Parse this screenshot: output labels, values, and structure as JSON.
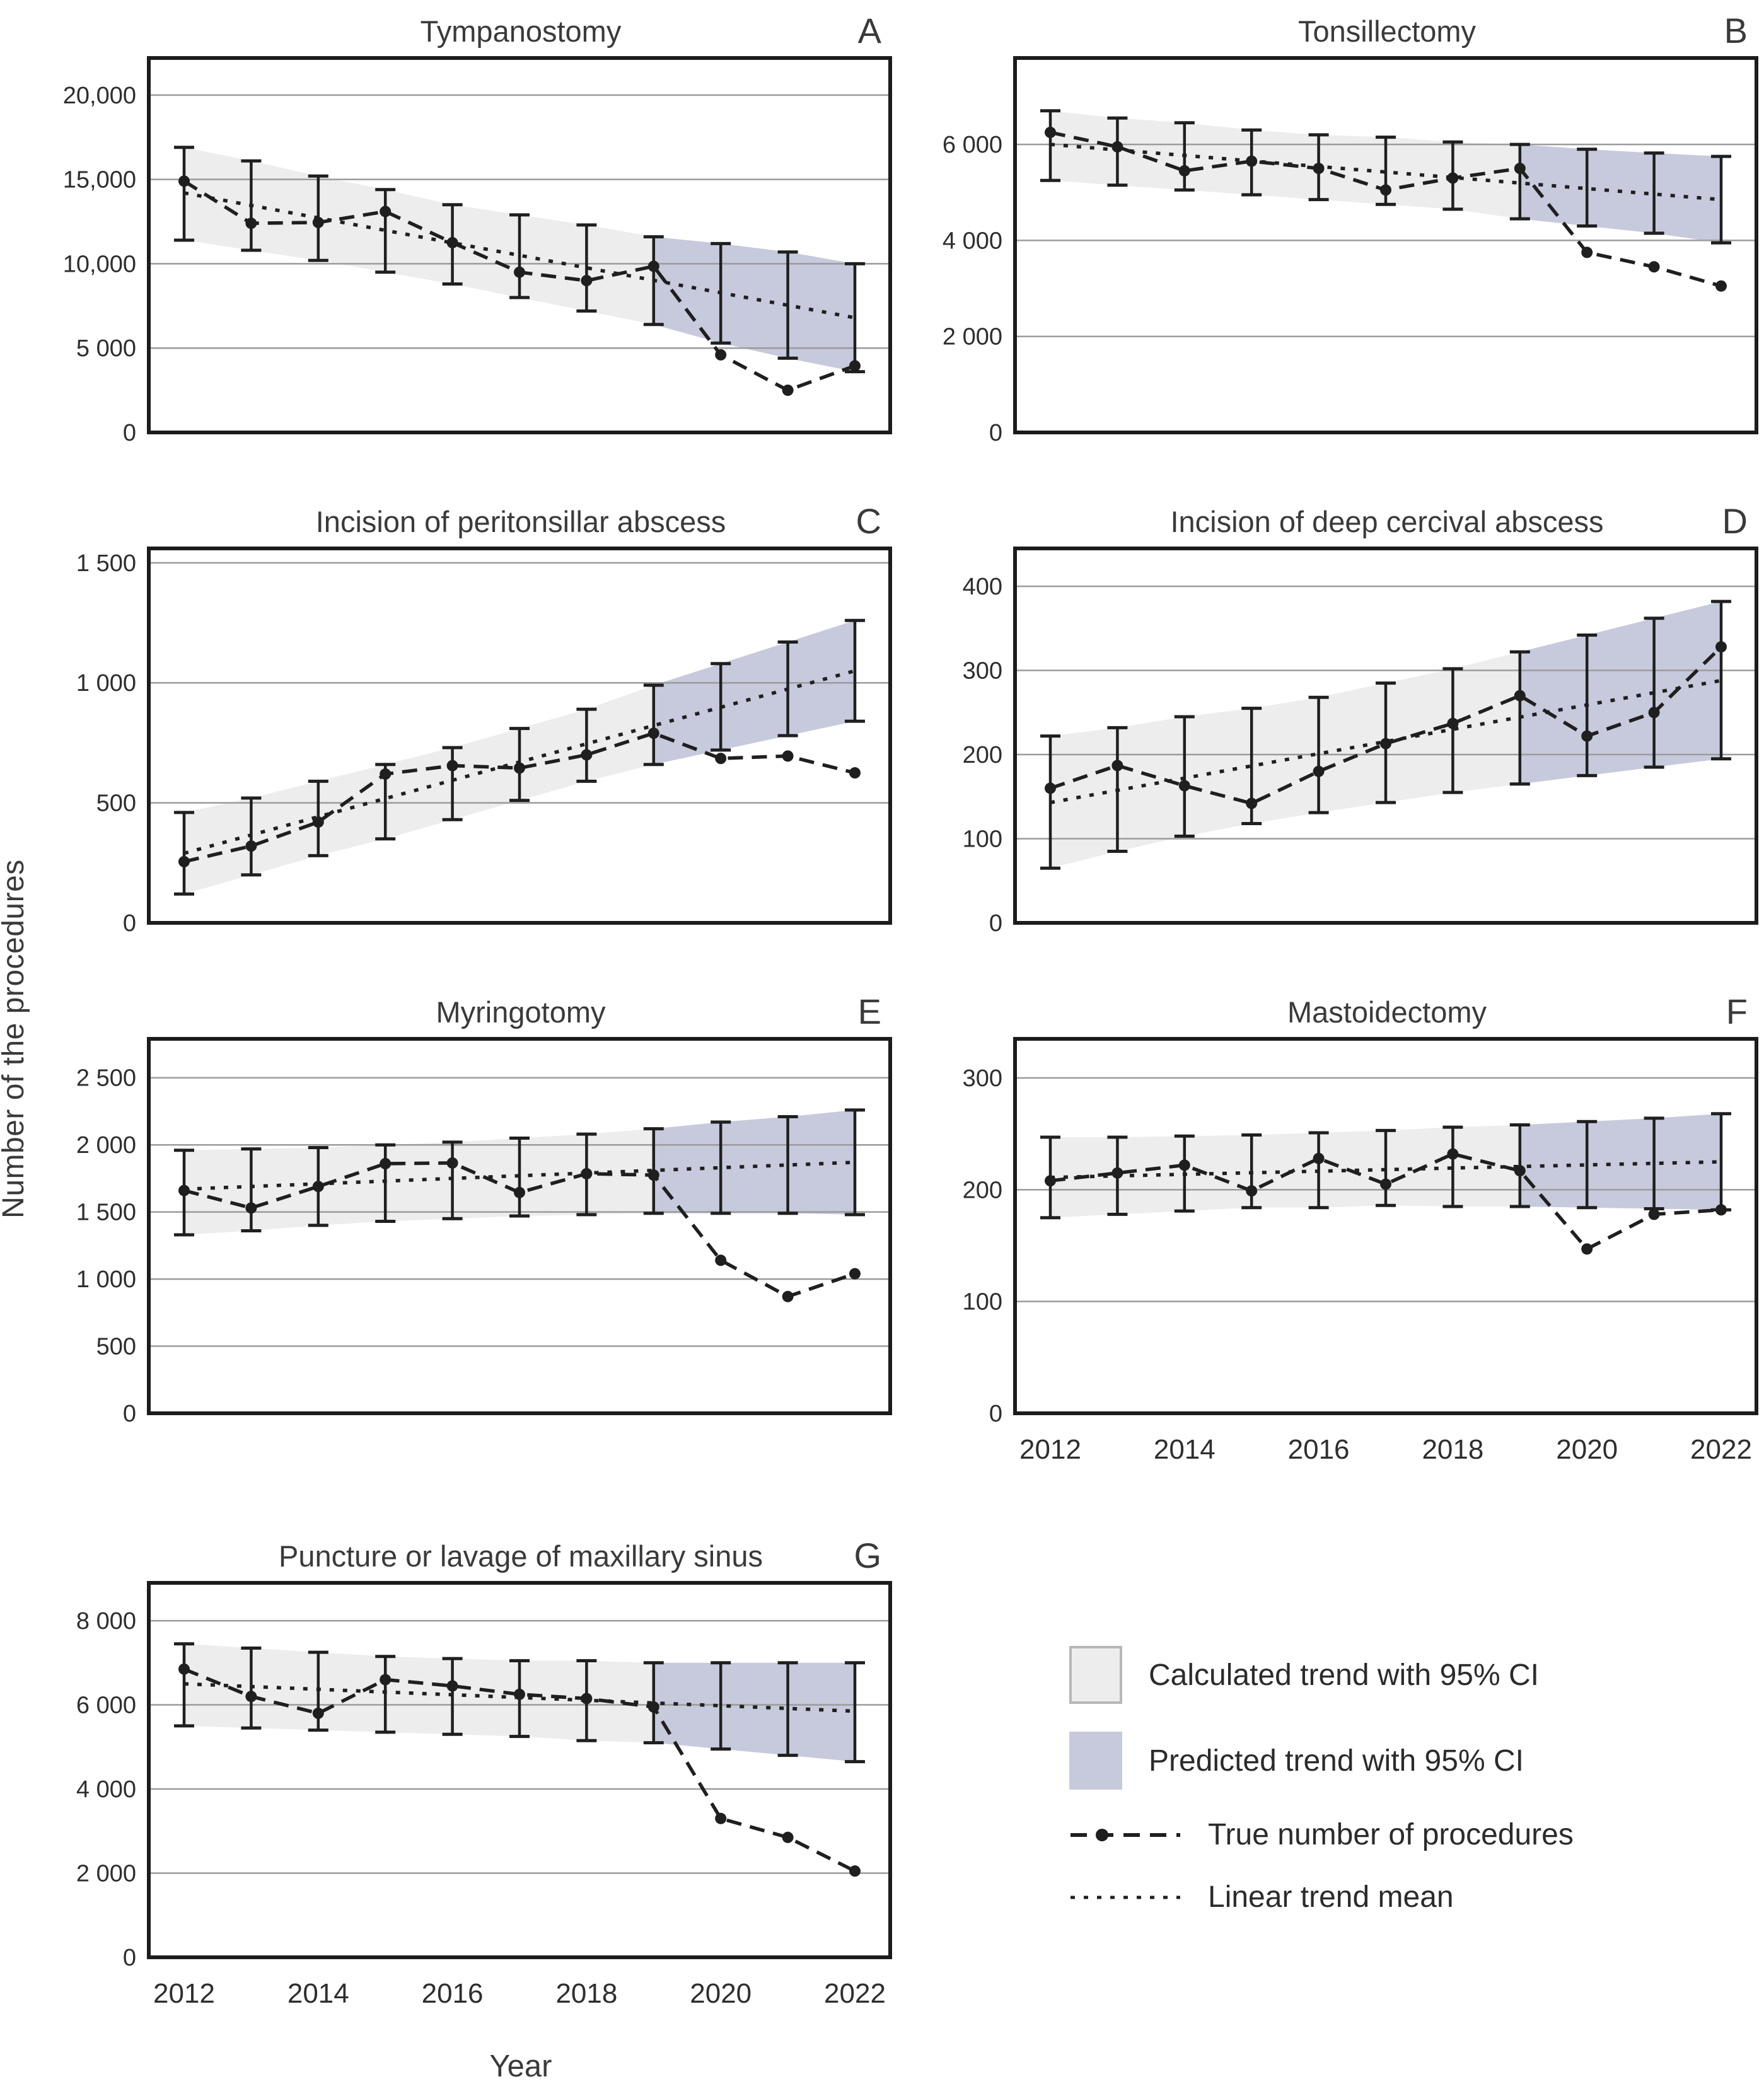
{
  "figure": {
    "y_axis_label": "Number of the procedures",
    "x_axis_label": "Year"
  },
  "colors": {
    "calculated_band": "#ededed",
    "predicted_band": "#c6cadc",
    "gridline": "#9b9b9b",
    "axis_box": "#1c1c1c",
    "data_line": "#1f1f1f"
  },
  "legend": {
    "items": [
      {
        "swatch": "calculated-band",
        "label": "Calculated trend with 95% CI"
      },
      {
        "swatch": "predicted-band",
        "label": "Predicted trend with 95% CI"
      },
      {
        "swatch": "dashed-line-with-dot",
        "label": "True number of procedures"
      },
      {
        "swatch": "dotted-line",
        "label": "Linear trend mean"
      }
    ]
  },
  "chart_data": [
    {
      "panel": "A",
      "title": "Tympanostomy",
      "type": "line",
      "x": [
        2012,
        2013,
        2014,
        2015,
        2016,
        2017,
        2018,
        2019,
        2020,
        2021,
        2022
      ],
      "ylim": [
        0,
        22200
      ],
      "ytick_values": [
        0,
        5000,
        10000,
        15000,
        20000
      ],
      "ytick_labels": [
        "0",
        "5 000",
        "10,000",
        "15,000",
        "20,000"
      ],
      "true_number": [
        14900,
        12400,
        12450,
        13100,
        11250,
        9500,
        9000,
        9850,
        4600,
        2500,
        3950
      ],
      "trend_mean": {
        "start": 14200,
        "end": 6800
      },
      "ci_upper": [
        16900,
        16100,
        15200,
        14400,
        13500,
        12900,
        12300,
        11600,
        11200,
        10700,
        10000
      ],
      "ci_lower": [
        11400,
        10800,
        10200,
        9500,
        8800,
        8000,
        7200,
        6400,
        5300,
        4400,
        3600
      ],
      "predicted_from_index": 7,
      "show_x_ticks": false
    },
    {
      "panel": "B",
      "title": "Tonsillectomy",
      "type": "line",
      "x": [
        2012,
        2013,
        2014,
        2015,
        2016,
        2017,
        2018,
        2019,
        2020,
        2021,
        2022
      ],
      "ylim": [
        0,
        7800
      ],
      "ytick_values": [
        0,
        2000,
        4000,
        6000
      ],
      "ytick_labels": [
        "0",
        "2 000",
        "4 000",
        "6 000"
      ],
      "true_number": [
        6250,
        5950,
        5450,
        5650,
        5500,
        5050,
        5300,
        5500,
        3750,
        3450,
        3050
      ],
      "trend_mean": {
        "start": 6000,
        "end": 4850
      },
      "ci_upper": [
        6700,
        6550,
        6450,
        6300,
        6200,
        6150,
        6050,
        6000,
        5900,
        5820,
        5750
      ],
      "ci_lower": [
        5250,
        5150,
        5050,
        4950,
        4850,
        4750,
        4650,
        4450,
        4300,
        4150,
        3950
      ],
      "predicted_from_index": 7,
      "show_x_ticks": false
    },
    {
      "panel": "C",
      "title": "Incision of peritonsillar abscess",
      "type": "line",
      "x": [
        2012,
        2013,
        2014,
        2015,
        2016,
        2017,
        2018,
        2019,
        2020,
        2021,
        2022
      ],
      "ylim": [
        0,
        1560
      ],
      "ytick_values": [
        0,
        500,
        1000,
        1500
      ],
      "ytick_labels": [
        "0",
        "500",
        "1 000",
        "1 500"
      ],
      "true_number": [
        255,
        320,
        420,
        620,
        655,
        645,
        700,
        790,
        685,
        695,
        625
      ],
      "trend_mean": {
        "start": 290,
        "end": 1050
      },
      "ci_upper": [
        460,
        520,
        590,
        660,
        730,
        810,
        890,
        990,
        1080,
        1170,
        1260
      ],
      "ci_lower": [
        120,
        200,
        280,
        350,
        430,
        510,
        590,
        660,
        720,
        780,
        840
      ],
      "predicted_from_index": 7,
      "show_x_ticks": false
    },
    {
      "panel": "D",
      "title": "Incision of deep cercival abscess",
      "type": "line",
      "x": [
        2012,
        2013,
        2014,
        2015,
        2016,
        2017,
        2018,
        2019,
        2020,
        2021,
        2022
      ],
      "ylim": [
        0,
        445
      ],
      "ytick_values": [
        0,
        100,
        200,
        300,
        400
      ],
      "ytick_labels": [
        "0",
        "100",
        "200",
        "300",
        "400"
      ],
      "true_number": [
        160,
        187,
        163,
        142,
        180,
        213,
        237,
        270,
        222,
        250,
        328
      ],
      "trend_mean": {
        "start": 143,
        "end": 288
      },
      "ci_upper": [
        222,
        232,
        245,
        255,
        268,
        285,
        302,
        322,
        342,
        362,
        382
      ],
      "ci_lower": [
        65,
        85,
        103,
        118,
        131,
        143,
        155,
        165,
        175,
        185,
        195
      ],
      "predicted_from_index": 7,
      "show_x_ticks": false
    },
    {
      "panel": "E",
      "title": "Myringotomy",
      "type": "line",
      "x": [
        2012,
        2013,
        2014,
        2015,
        2016,
        2017,
        2018,
        2019,
        2020,
        2021,
        2022
      ],
      "ylim": [
        0,
        2790
      ],
      "ytick_values": [
        0,
        500,
        1000,
        1500,
        2000,
        2500
      ],
      "ytick_labels": [
        "0",
        "500",
        "1 000",
        "1 500",
        "2 000",
        "2 500"
      ],
      "true_number": [
        1660,
        1530,
        1690,
        1860,
        1865,
        1645,
        1785,
        1775,
        1140,
        870,
        1040
      ],
      "trend_mean": {
        "start": 1670,
        "end": 1870
      },
      "ci_upper": [
        1960,
        1970,
        1980,
        2000,
        2020,
        2050,
        2080,
        2120,
        2170,
        2210,
        2260
      ],
      "ci_lower": [
        1330,
        1360,
        1400,
        1430,
        1450,
        1470,
        1480,
        1490,
        1490,
        1490,
        1480
      ],
      "predicted_from_index": 7,
      "show_x_ticks": false
    },
    {
      "panel": "F",
      "title": "Mastoidectomy",
      "type": "line",
      "x": [
        2012,
        2013,
        2014,
        2015,
        2016,
        2017,
        2018,
        2019,
        2020,
        2021,
        2022
      ],
      "ylim": [
        0,
        335
      ],
      "ytick_values": [
        0,
        100,
        200,
        300
      ],
      "ytick_labels": [
        "0",
        "100",
        "200",
        "300"
      ],
      "true_number": [
        208,
        215,
        222,
        199,
        228,
        205,
        232,
        217,
        147,
        178,
        182
      ],
      "trend_mean": {
        "start": 211,
        "end": 225
      },
      "ci_upper": [
        247,
        247,
        248,
        249,
        251,
        253,
        256,
        258,
        261,
        264,
        268
      ],
      "ci_lower": [
        175,
        178,
        181,
        184,
        184,
        186,
        185,
        185,
        184,
        183,
        182
      ],
      "predicted_from_index": 7,
      "show_x_ticks": true,
      "x_tick_labels": [
        "2012",
        "2014",
        "2016",
        "2018",
        "2020",
        "2022"
      ]
    },
    {
      "panel": "G",
      "title": "Puncture or lavage of maxillary sinus",
      "type": "line",
      "x": [
        2012,
        2013,
        2014,
        2015,
        2016,
        2017,
        2018,
        2019,
        2020,
        2021,
        2022
      ],
      "ylim": [
        0,
        8900
      ],
      "ytick_values": [
        0,
        2000,
        4000,
        6000,
        8000
      ],
      "ytick_labels": [
        "0",
        "2 000",
        "4 000",
        "6 000",
        "8 000"
      ],
      "true_number": [
        6850,
        6200,
        5800,
        6600,
        6450,
        6250,
        6150,
        5950,
        3300,
        2850,
        2050
      ],
      "trend_mean": {
        "start": 6500,
        "end": 5850
      },
      "ci_upper": [
        7450,
        7350,
        7250,
        7150,
        7100,
        7050,
        7050,
        7000,
        7000,
        7000,
        7000
      ],
      "ci_lower": [
        5500,
        5450,
        5400,
        5350,
        5300,
        5250,
        5150,
        5100,
        4950,
        4800,
        4650
      ],
      "predicted_from_index": 7,
      "show_x_ticks": true,
      "x_tick_labels": [
        "2012",
        "2014",
        "2016",
        "2018",
        "2020",
        "2022"
      ]
    }
  ]
}
